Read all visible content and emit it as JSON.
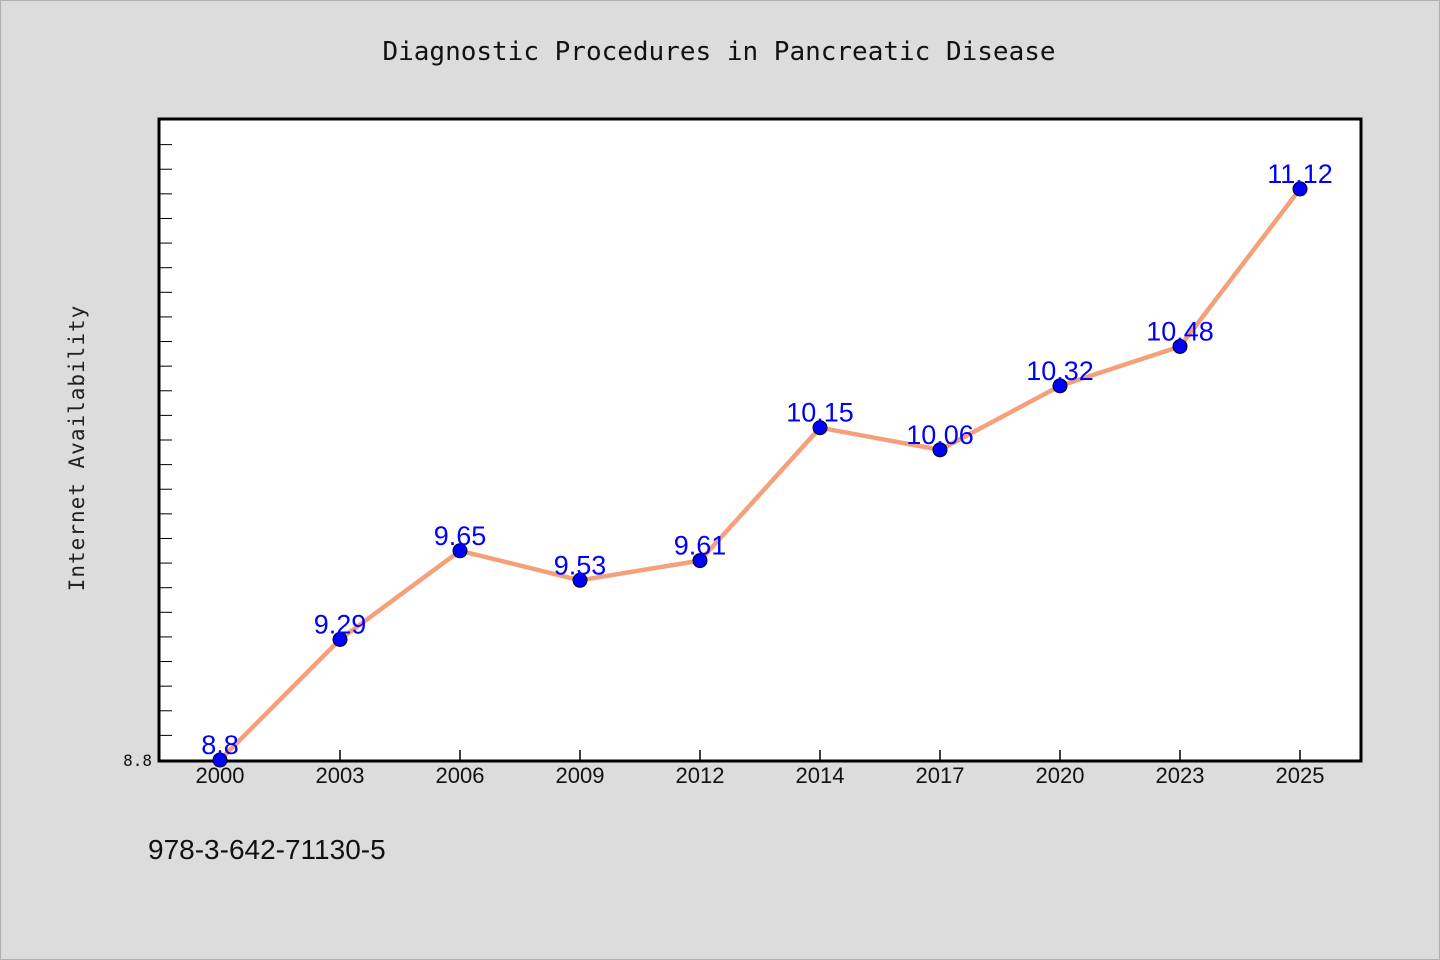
{
  "chart_data": {
    "type": "line",
    "title": "Diagnostic Procedures in Pancreatic Disease",
    "xlabel": "",
    "ylabel": "Internet Availability",
    "x": [
      "2000",
      "2003",
      "2006",
      "2009",
      "2012",
      "2014",
      "2017",
      "2020",
      "2023",
      "2025"
    ],
    "series": [
      {
        "values": [
          8.8,
          9.29,
          9.65,
          9.53,
          9.61,
          10.15,
          10.06,
          10.32,
          10.48,
          11.12
        ]
      }
    ],
    "data_labels": [
      "8.8",
      "9.29",
      "9.65",
      "9.53",
      "9.61",
      "10.15",
      "10.06",
      "10.32",
      "10.48",
      "11.12"
    ],
    "ytick_labels": [
      "8.8"
    ],
    "ylim": [
      8.8,
      11.4
    ],
    "grid": false,
    "colors": {
      "line": "#f4a07a",
      "marker": "#0000ff",
      "data_label": "#0000ff",
      "background": "#dcdcdc",
      "plot_area": "#ffffff"
    }
  },
  "footer": {
    "isbn": "978-3-642-71130-5"
  }
}
